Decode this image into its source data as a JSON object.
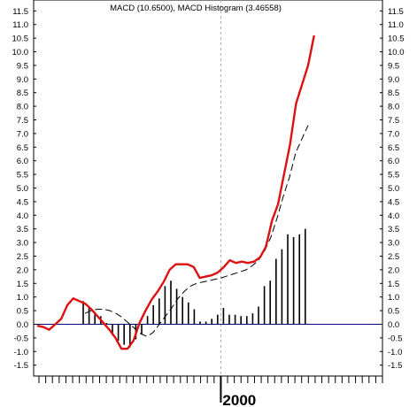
{
  "chart_data": {
    "type": "line",
    "title": "MACD (10.6500), MACD Histogram (3.46558)",
    "x_axis_label": "2000",
    "ylim": [
      -1.9,
      11.9
    ],
    "y_ticks": [
      "11.5",
      "11.0",
      "10.5",
      "10.0",
      "9.5",
      "9.0",
      "8.5",
      "8.0",
      "7.5",
      "7.0",
      "6.5",
      "6.0",
      "5.5",
      "5.0",
      "4.5",
      "4.0",
      "3.5",
      "3.0",
      "2.5",
      "2.0",
      "1.5",
      "1.0",
      "0.5",
      "0.0",
      "-0.5",
      "-1.0",
      "-1.5"
    ],
    "year_marker_index": 27,
    "x_tick_count": 52,
    "colors": {
      "macd": "#dd1111",
      "signal": "#000000",
      "histogram": "#000000",
      "zero_line": "#000080",
      "year_line": "#aaaaaa"
    },
    "series": [
      {
        "kind": "macd_line",
        "values": [
          -0.05,
          -0.1,
          -0.2,
          0.0,
          0.2,
          0.7,
          0.95,
          0.85,
          0.75,
          0.55,
          0.3,
          0.05,
          -0.2,
          -0.5,
          -0.9,
          -0.9,
          -0.6,
          0.05,
          0.5,
          0.9,
          1.2,
          1.55,
          2.0,
          2.2,
          2.2,
          2.2,
          2.1,
          1.7,
          1.75,
          1.8,
          1.9,
          2.1,
          2.35,
          2.25,
          2.3,
          2.25,
          2.3,
          2.45,
          2.85,
          3.8,
          4.4,
          5.5,
          6.6,
          8.1,
          8.8,
          9.5,
          10.6
        ]
      },
      {
        "kind": "signal_line",
        "values": [
          0.4,
          0.5,
          0.55,
          0.55,
          0.5,
          0.4,
          0.25,
          0.05,
          -0.15,
          -0.35,
          -0.45,
          -0.3,
          0.0,
          0.3,
          0.6,
          0.95,
          1.2,
          1.4,
          1.5,
          1.55,
          1.6,
          1.65,
          1.7,
          1.78,
          1.85,
          1.92,
          2.0,
          2.15,
          2.35,
          2.7,
          3.2,
          3.9,
          4.7,
          5.4,
          6.3,
          6.8,
          7.3
        ]
      },
      {
        "kind": "histogram",
        "values": [
          0.85,
          0.6,
          0.45,
          0.3,
          0.05,
          -0.4,
          -0.6,
          -0.75,
          -0.85,
          -0.55,
          -0.35,
          0.3,
          0.7,
          0.95,
          1.4,
          1.6,
          1.3,
          1.0,
          0.8,
          0.55,
          0.1,
          0.1,
          0.2,
          0.35,
          0.6,
          0.35,
          0.35,
          0.3,
          0.3,
          0.4,
          0.65,
          1.4,
          1.6,
          2.4,
          2.75,
          3.3,
          3.2,
          3.3,
          3.5
        ]
      }
    ]
  }
}
